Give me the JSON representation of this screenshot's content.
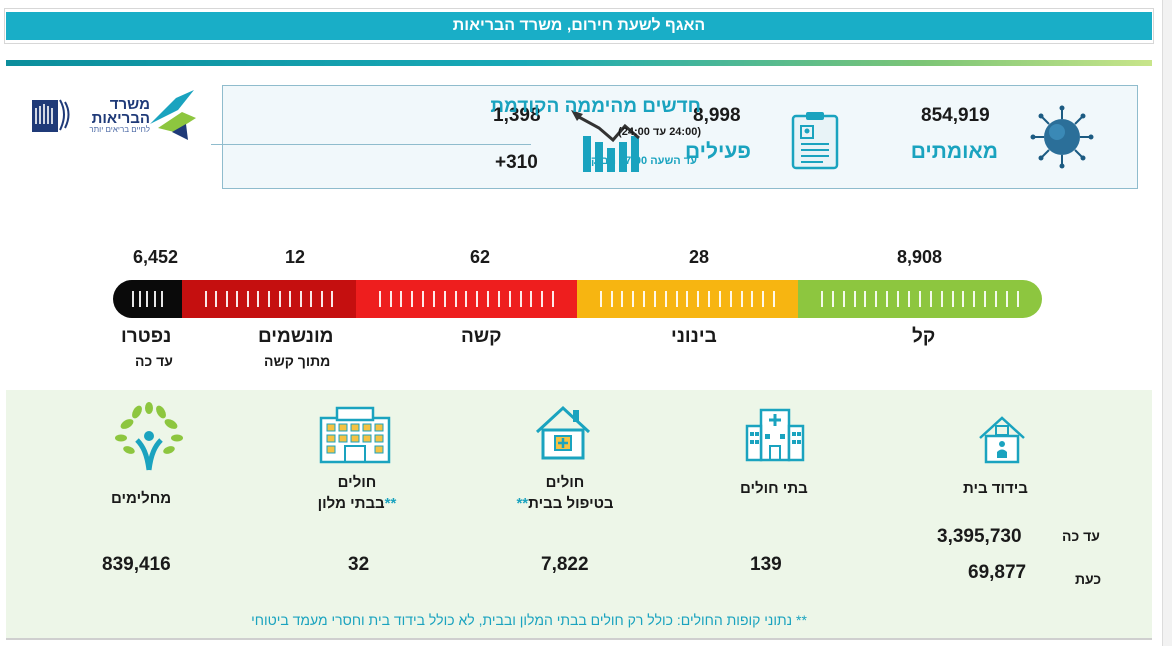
{
  "header": {
    "title": "האגף לשעת חירום, משרד הבריאות"
  },
  "logo": {
    "line1": "משרד",
    "line2": "הבריאות",
    "tagline": "לחיים בריאים יותר"
  },
  "stats": {
    "confirmed_value": "854,919",
    "confirmed_label": "מאומתים",
    "active_value": "8,998",
    "active_label": "פעילים",
    "new_value": "1,398",
    "new_label": "חדשים מהיממה הקודמת",
    "new_range": "(24:00 עד 24:00)",
    "since_value": "+310",
    "since_label": "עד השעה 07:00 הבוקר"
  },
  "severity": {
    "segments": [
      {
        "label": "נפטרו",
        "sub": "עד כה",
        "value": "6,452",
        "color": "#0a0a0a"
      },
      {
        "label": "מונשמים",
        "sub": "מתוך קשה",
        "value": "12",
        "color": "#c50f0f"
      },
      {
        "label": "קשה",
        "sub": "",
        "value": "62",
        "color": "#ee1e1e"
      },
      {
        "label": "בינוני",
        "sub": "",
        "value": "28",
        "color": "#f7b511"
      },
      {
        "label": "קל",
        "sub": "",
        "value": "8,908",
        "color": "#8dc63f"
      }
    ]
  },
  "bottom": {
    "home_isolation": {
      "label": "בידוד בית",
      "total_label": "עד כה",
      "total_value": "3,395,730",
      "now_label": "כעת",
      "now_value": "69,877"
    },
    "hospitals": {
      "label": "בתי חולים",
      "value": "139"
    },
    "home_care": {
      "label1": "חולים",
      "label2": "בטיפול בבית",
      "stars": "**",
      "value": "7,822"
    },
    "hotels": {
      "label1": "חולים",
      "label2": "בבתי מלון",
      "stars": "**",
      "value": "32"
    },
    "recovered": {
      "label": "מחלימים",
      "value": "839,416"
    },
    "footnote": "** נתוני קופות החולים: כולל רק חולים בבתי המלון ובבית, לא כולל בידוד בית וחסרי מעמד ביטוחי"
  },
  "colors": {
    "accent": "#1aa3bf",
    "banner": "#19aec7",
    "panel_bg": "#edf6e8"
  },
  "icons": [
    "virus-icon",
    "clipboard-icon",
    "trend-chart-icon",
    "ministry-logo",
    "house-icon",
    "hospital-icon",
    "home-care-icon",
    "hotel-icon",
    "recovered-tree-icon"
  ]
}
